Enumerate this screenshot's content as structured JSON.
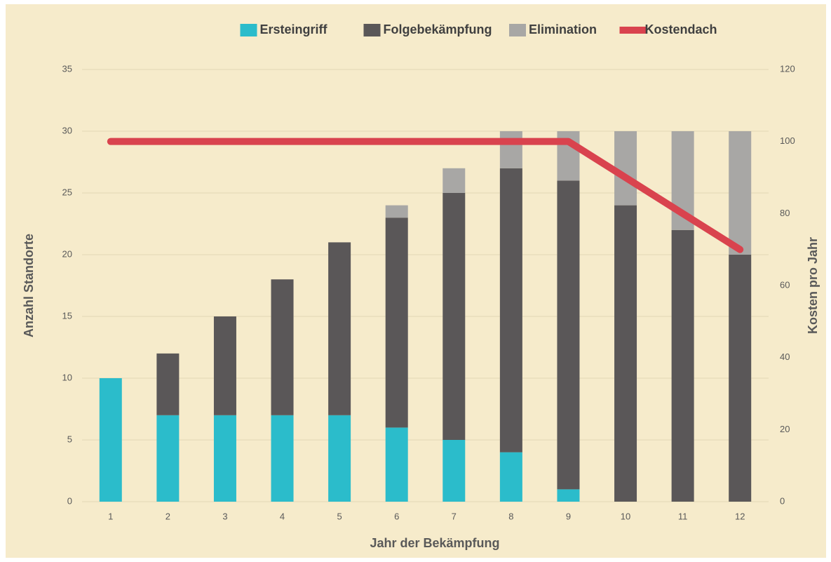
{
  "chart_data": {
    "type": "bar",
    "stacked": true,
    "categories": [
      "1",
      "2",
      "3",
      "4",
      "5",
      "6",
      "7",
      "8",
      "9",
      "10",
      "11",
      "12"
    ],
    "series": [
      {
        "name": "Ersteingriff",
        "color": "#2bbccb",
        "values": [
          10,
          7,
          7,
          7,
          7,
          6,
          5,
          4,
          1,
          0,
          0,
          0
        ]
      },
      {
        "name": "Folgebekämpfung",
        "color": "#5a5758",
        "values": [
          0,
          5,
          8,
          11,
          14,
          17,
          20,
          23,
          25,
          24,
          22,
          20
        ]
      },
      {
        "name": "Elimination",
        "color": "#a8a7a5",
        "values": [
          0,
          0,
          0,
          0,
          0,
          1,
          2,
          3,
          4,
          6,
          8,
          10
        ]
      },
      {
        "name": "Kostendach",
        "color": "#d9434e",
        "type": "line",
        "axis": "y2",
        "values": [
          100,
          100,
          100,
          100,
          100,
          100,
          100,
          100,
          100,
          90,
          80,
          70
        ]
      }
    ],
    "xlabel": "Jahr der Bekämpfung",
    "ylabel": "Anzahl Standorte",
    "y2label": "Kosten pro Jahr",
    "ylim": [
      0,
      35
    ],
    "yticks": [
      0,
      5,
      10,
      15,
      20,
      25,
      30,
      35
    ],
    "y2lim": [
      0,
      120
    ],
    "y2ticks": [
      0,
      20,
      40,
      60,
      80,
      100,
      120
    ],
    "grid": true,
    "legend": "top"
  }
}
